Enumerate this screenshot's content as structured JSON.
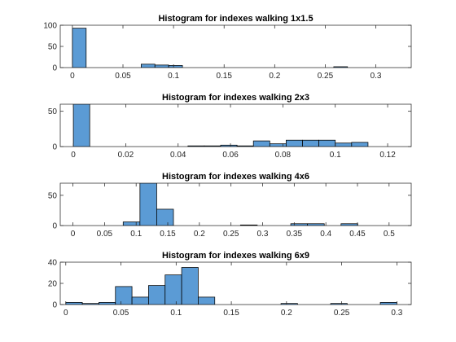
{
  "chart_data": [
    {
      "type": "bar",
      "title": "Histogram for indexes walking 1x1.5",
      "xlabel": "",
      "ylabel": "",
      "xlim": [
        -0.012,
        0.335
      ],
      "ylim": [
        0,
        100
      ],
      "xticks": [
        0,
        0.05,
        0.1,
        0.15,
        0.2,
        0.25,
        0.3
      ],
      "xtick_labels": [
        "0",
        "0.05",
        "0.1",
        "0.15",
        "0.2",
        "0.25",
        "0.3"
      ],
      "yticks": [
        0,
        50,
        100
      ],
      "ytick_labels": [
        "0",
        "50",
        "100"
      ],
      "bin_width": 0.0136,
      "bin_starts": [
        0,
        0.0136,
        0.0272,
        0.0408,
        0.0544,
        0.068,
        0.0816,
        0.0952,
        0.1088,
        0.1224,
        0.136,
        0.1496,
        0.1632,
        0.1768,
        0.1904,
        0.204,
        0.2176,
        0.2312,
        0.2448,
        0.2584,
        0.272,
        0.2856
      ],
      "values": [
        93,
        0,
        0,
        0,
        0,
        8,
        6,
        5,
        0,
        0,
        0,
        0,
        0,
        0,
        0,
        0,
        0,
        0,
        0,
        2,
        0,
        0
      ],
      "color": "#5b9bd5"
    },
    {
      "type": "bar",
      "title": "Histogram for indexes walking 2x3",
      "xlabel": "",
      "ylabel": "",
      "xlim": [
        -0.005,
        0.129
      ],
      "ylim": [
        0,
        60
      ],
      "xticks": [
        0,
        0.02,
        0.04,
        0.06,
        0.08,
        0.1,
        0.12
      ],
      "xtick_labels": [
        "0",
        "0.02",
        "0.04",
        "0.06",
        "0.08",
        "0.1",
        "0.12"
      ],
      "yticks": [
        0,
        50
      ],
      "ytick_labels": [
        "0",
        "50"
      ],
      "bin_width": 0.00625,
      "bin_starts": [
        0,
        0.00625,
        0.0125,
        0.01875,
        0.025,
        0.03125,
        0.0375,
        0.04375,
        0.05,
        0.05625,
        0.0625,
        0.06875,
        0.075,
        0.08125,
        0.0875,
        0.09375,
        0.1,
        0.10625
      ],
      "values": [
        60,
        0,
        0,
        0,
        0,
        0,
        0,
        1,
        1,
        2,
        1,
        8,
        4,
        9,
        9,
        9,
        5,
        6
      ],
      "color": "#5b9bd5"
    },
    {
      "type": "bar",
      "title": "Histogram for indexes walking 4x6",
      "xlabel": "",
      "ylabel": "",
      "xlim": [
        -0.02,
        0.535
      ],
      "ylim": [
        0,
        70
      ],
      "xticks": [
        0,
        0.05,
        0.1,
        0.15,
        0.2,
        0.25,
        0.3,
        0.35,
        0.4,
        0.45,
        0.5
      ],
      "xtick_labels": [
        "0",
        "0.05",
        "0.1",
        "0.15",
        "0.2",
        "0.25",
        "0.3",
        "0.35",
        "0.4",
        "0.45",
        "0.5"
      ],
      "yticks": [
        0,
        50
      ],
      "ytick_labels": [
        "0",
        "50"
      ],
      "bin_width": 0.0265,
      "bin_starts": [
        0.0795,
        0.106,
        0.1325,
        0.159,
        0.1855,
        0.212,
        0.2385,
        0.265,
        0.2915,
        0.318,
        0.3445,
        0.371,
        0.3975,
        0.424
      ],
      "values": [
        6,
        70,
        27,
        0,
        0,
        0,
        0,
        1,
        0,
        0,
        3,
        3,
        0,
        3
      ],
      "color": "#5b9bd5"
    },
    {
      "type": "bar",
      "title": "Histogram for indexes walking 6x9",
      "xlabel": "",
      "ylabel": "",
      "xlim": [
        -0.005,
        0.313
      ],
      "ylim": [
        0,
        40
      ],
      "xticks": [
        0,
        0.05,
        0.1,
        0.15,
        0.2,
        0.25,
        0.3
      ],
      "xtick_labels": [
        "0",
        "0.05",
        "0.1",
        "0.15",
        "0.2",
        "0.25",
        "0.3"
      ],
      "yticks": [
        0,
        20,
        40
      ],
      "ytick_labels": [
        "0",
        "20",
        "40"
      ],
      "bin_width": 0.015,
      "bin_starts": [
        0,
        0.015,
        0.03,
        0.045,
        0.06,
        0.075,
        0.09,
        0.105,
        0.12,
        0.135,
        0.15,
        0.165,
        0.18,
        0.195,
        0.21,
        0.225,
        0.24,
        0.255,
        0.27,
        0.285
      ],
      "values": [
        2,
        1,
        2,
        17,
        7,
        18,
        28,
        35,
        7,
        0,
        0,
        0,
        0,
        1,
        0,
        0,
        1,
        0,
        0,
        2
      ],
      "color": "#5b9bd5"
    }
  ]
}
